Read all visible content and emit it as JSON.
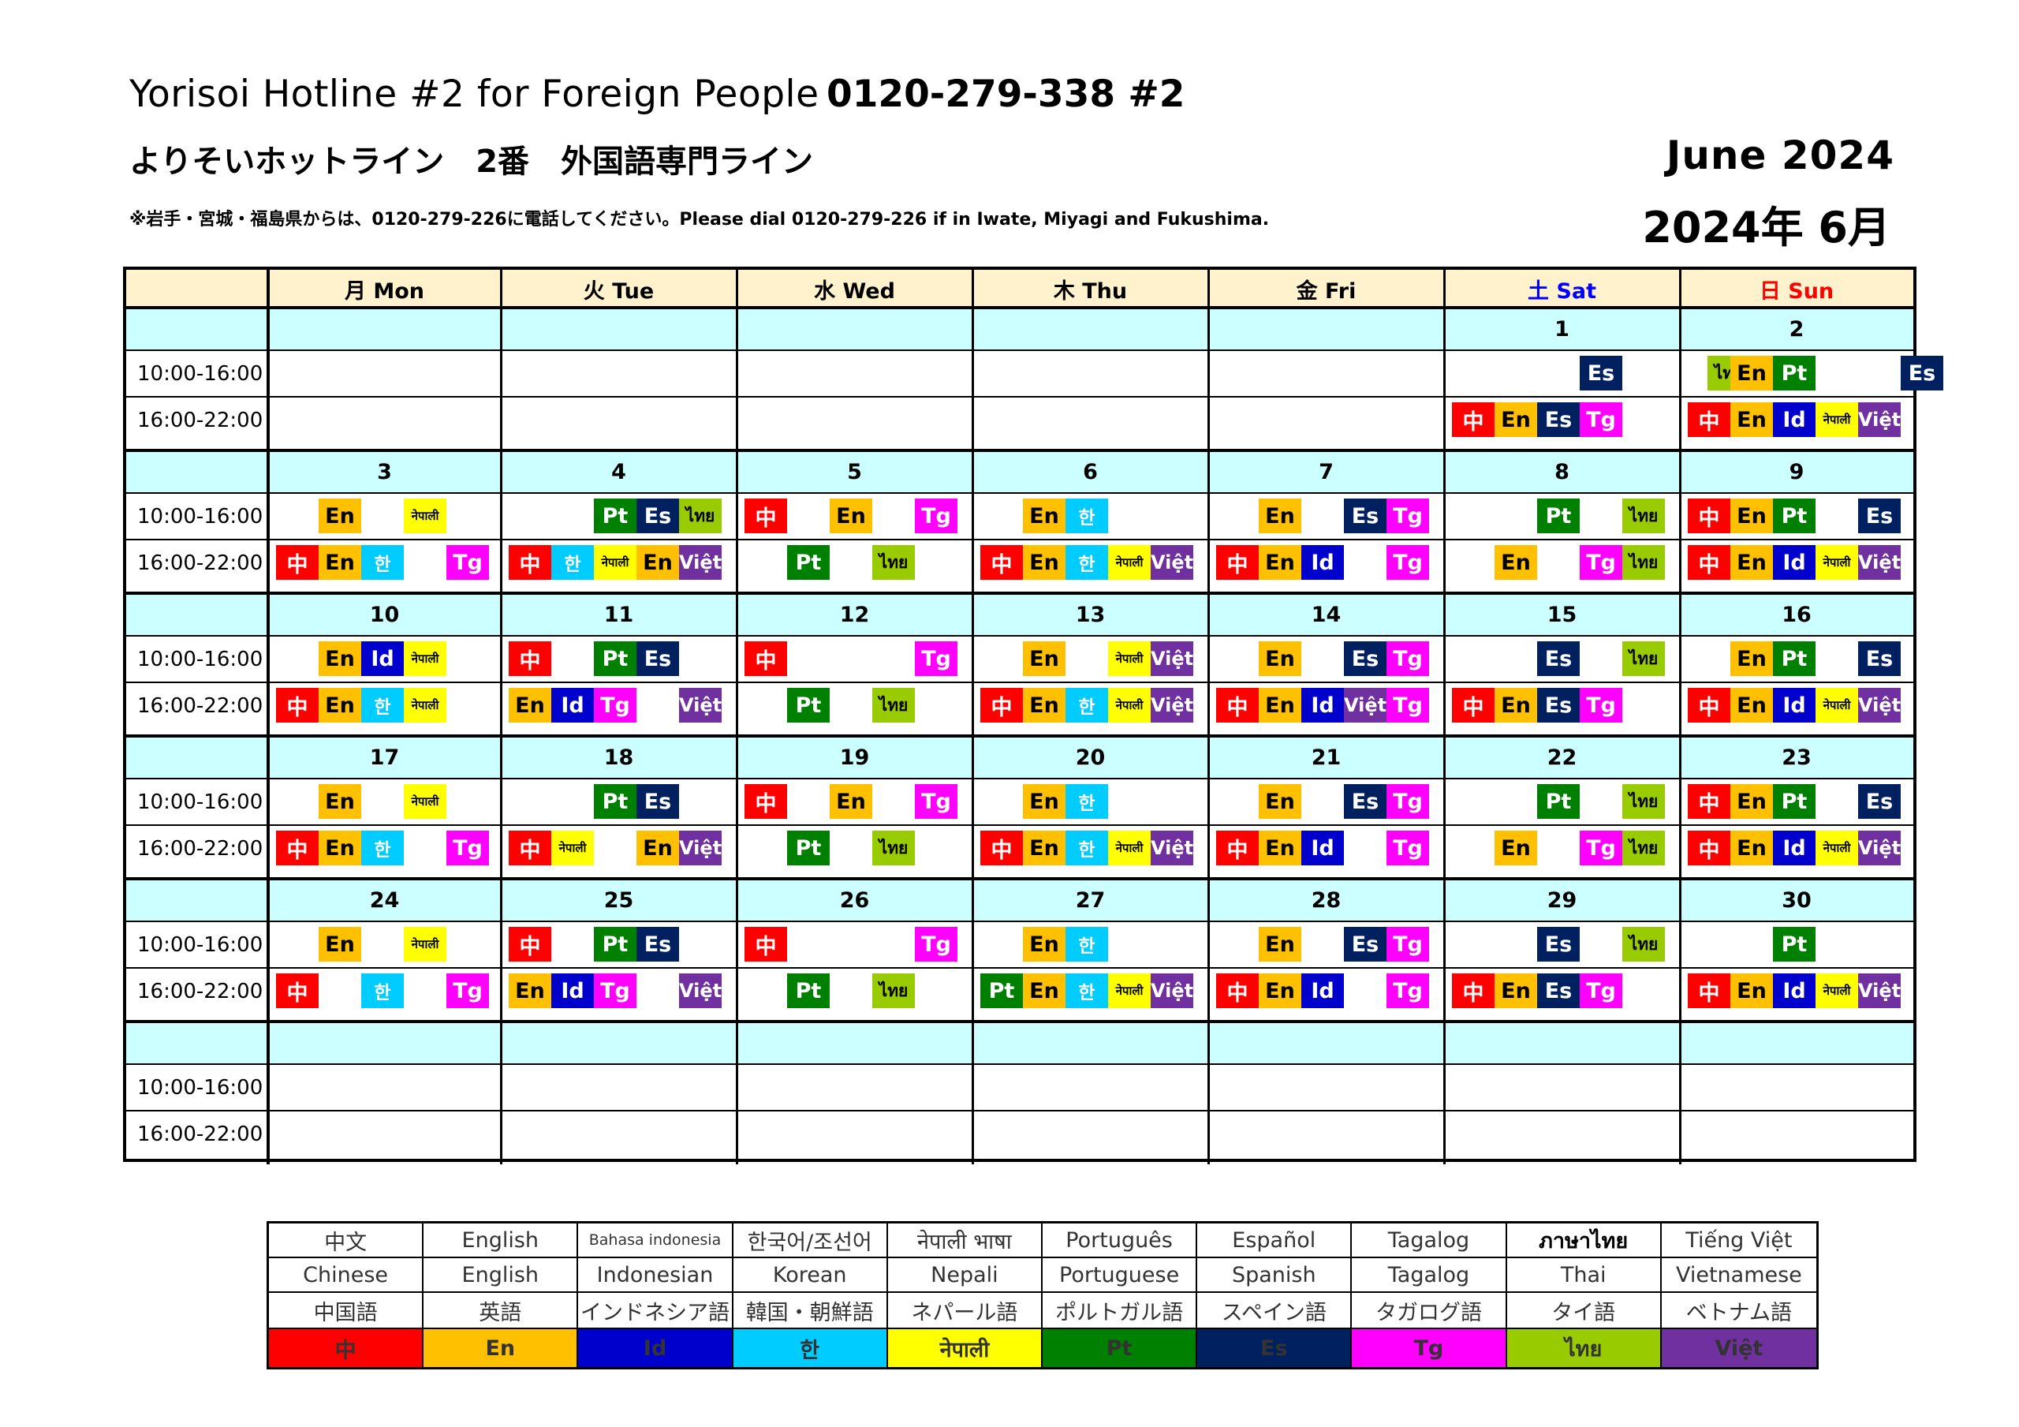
{
  "header": {
    "title_en": "Yorisoi Hotline #2 for Foreign People",
    "phone": "0120-279-338 #2",
    "title_jp": "よりそいホットライン　2番　外国語専門ライン",
    "note": "※岩手・宮城・福島県からは、0120-279-226に電話してください。Please dial 0120-279-226 if in Iwate, Miyagi and Fukushima.",
    "month_en": "June  2024",
    "month_jp": "2024年 6月"
  },
  "days": [
    "月 Mon",
    "火 Tue",
    "水 Wed",
    "木 Thu",
    "金 Fri",
    "土 Sat",
    "日 Sun"
  ],
  "slots": [
    "10:00-16:00",
    "16:00-22:00"
  ],
  "colors": {
    "zh": "#ff0000",
    "en": "#ffc000",
    "id": "#0000cc",
    "ko": "#00ccff",
    "ne": "#ffff00",
    "pt": "#008000",
    "es": "#002060",
    "tg": "#ff00ff",
    "th": "#99cc00",
    "vi": "#7030a0",
    "header_bg": "#fff2cc",
    "date_bg": "#ccffff"
  },
  "codes": {
    "zh": "中",
    "en": "En",
    "id": "Id",
    "ko": "한",
    "ne": "नेपाली",
    "pt": "Pt",
    "es": "Es",
    "tg": "Tg",
    "th": "ไทย",
    "vi": "Việt"
  },
  "weeks": [
    {
      "dates": [
        "",
        "",
        "",
        "",
        "",
        "1",
        "2"
      ],
      "am": [
        [],
        [],
        [],
        [],
        [],
        [
          [
            "es",
            3
          ],
          [
            "th",
            6
          ]
        ],
        [
          [
            "en",
            1
          ],
          [
            "pt",
            2
          ],
          [
            "es",
            5
          ]
        ]
      ],
      "pm": [
        [],
        [],
        [],
        [],
        [],
        [
          [
            "zh",
            0
          ],
          [
            "en",
            1
          ],
          [
            "es",
            2
          ],
          [
            "tg",
            3
          ]
        ],
        [
          [
            "zh",
            0
          ],
          [
            "en",
            1
          ],
          [
            "id",
            2
          ],
          [
            "ne",
            3
          ],
          [
            "vi",
            4
          ]
        ]
      ]
    },
    {
      "dates": [
        "3",
        "4",
        "5",
        "6",
        "7",
        "8",
        "9"
      ],
      "am": [
        [
          [
            "en",
            1
          ],
          [
            "ne",
            3
          ]
        ],
        [
          [
            "pt",
            2
          ],
          [
            "es",
            3
          ],
          [
            "th",
            4
          ]
        ],
        [
          [
            "zh",
            0
          ],
          [
            "en",
            2
          ],
          [
            "tg",
            4
          ]
        ],
        [
          [
            "en",
            1
          ],
          [
            "ko",
            2
          ]
        ],
        [
          [
            "en",
            1
          ],
          [
            "es",
            3
          ],
          [
            "tg",
            4
          ]
        ],
        [
          [
            "pt",
            2
          ],
          [
            "th",
            4
          ]
        ],
        [
          [
            "zh",
            0
          ],
          [
            "en",
            1
          ],
          [
            "pt",
            2
          ],
          [
            "es",
            4
          ]
        ]
      ],
      "pm": [
        [
          [
            "zh",
            0
          ],
          [
            "en",
            1
          ],
          [
            "ko",
            2
          ],
          [
            "tg",
            4
          ]
        ],
        [
          [
            "zh",
            0
          ],
          [
            "ko",
            1
          ],
          [
            "ne",
            2
          ],
          [
            "en",
            3
          ],
          [
            "vi",
            4
          ]
        ],
        [
          [
            "pt",
            1
          ],
          [
            "th",
            3
          ]
        ],
        [
          [
            "zh",
            0
          ],
          [
            "en",
            1
          ],
          [
            "ko",
            2
          ],
          [
            "ne",
            3
          ],
          [
            "vi",
            4
          ]
        ],
        [
          [
            "zh",
            0
          ],
          [
            "en",
            1
          ],
          [
            "id",
            2
          ],
          [
            "tg",
            4
          ]
        ],
        [
          [
            "en",
            1
          ],
          [
            "tg",
            3
          ],
          [
            "th",
            4
          ]
        ],
        [
          [
            "zh",
            0
          ],
          [
            "en",
            1
          ],
          [
            "id",
            2
          ],
          [
            "ne",
            3
          ],
          [
            "vi",
            4
          ]
        ]
      ]
    },
    {
      "dates": [
        "10",
        "11",
        "12",
        "13",
        "14",
        "15",
        "16"
      ],
      "am": [
        [
          [
            "en",
            1
          ],
          [
            "id",
            2
          ],
          [
            "ne",
            3
          ]
        ],
        [
          [
            "zh",
            0
          ],
          [
            "pt",
            2
          ],
          [
            "es",
            3
          ]
        ],
        [
          [
            "zh",
            0
          ],
          [
            "tg",
            4
          ]
        ],
        [
          [
            "en",
            1
          ],
          [
            "ne",
            3
          ],
          [
            "vi",
            4
          ]
        ],
        [
          [
            "en",
            1
          ],
          [
            "es",
            3
          ],
          [
            "tg",
            4
          ]
        ],
        [
          [
            "es",
            2
          ],
          [
            "th",
            4
          ]
        ],
        [
          [
            "en",
            1
          ],
          [
            "pt",
            2
          ],
          [
            "es",
            4
          ]
        ]
      ],
      "pm": [
        [
          [
            "zh",
            0
          ],
          [
            "en",
            1
          ],
          [
            "ko",
            2
          ],
          [
            "ne",
            3
          ]
        ],
        [
          [
            "en",
            0
          ],
          [
            "id",
            1
          ],
          [
            "tg",
            2
          ],
          [
            "vi",
            4
          ]
        ],
        [
          [
            "pt",
            1
          ],
          [
            "th",
            3
          ]
        ],
        [
          [
            "zh",
            0
          ],
          [
            "en",
            1
          ],
          [
            "ko",
            2
          ],
          [
            "ne",
            3
          ],
          [
            "vi",
            4
          ]
        ],
        [
          [
            "zh",
            0
          ],
          [
            "en",
            1
          ],
          [
            "id",
            2
          ],
          [
            "vi",
            3
          ],
          [
            "tg",
            4
          ]
        ],
        [
          [
            "zh",
            0
          ],
          [
            "en",
            1
          ],
          [
            "es",
            2
          ],
          [
            "tg",
            3
          ]
        ],
        [
          [
            "zh",
            0
          ],
          [
            "en",
            1
          ],
          [
            "id",
            2
          ],
          [
            "ne",
            3
          ],
          [
            "vi",
            4
          ]
        ]
      ]
    },
    {
      "dates": [
        "17",
        "18",
        "19",
        "20",
        "21",
        "22",
        "23"
      ],
      "am": [
        [
          [
            "en",
            1
          ],
          [
            "ne",
            3
          ]
        ],
        [
          [
            "pt",
            2
          ],
          [
            "es",
            3
          ]
        ],
        [
          [
            "zh",
            0
          ],
          [
            "en",
            2
          ],
          [
            "tg",
            4
          ]
        ],
        [
          [
            "en",
            1
          ],
          [
            "ko",
            2
          ]
        ],
        [
          [
            "en",
            1
          ],
          [
            "es",
            3
          ],
          [
            "tg",
            4
          ]
        ],
        [
          [
            "pt",
            2
          ],
          [
            "th",
            4
          ]
        ],
        [
          [
            "zh",
            0
          ],
          [
            "en",
            1
          ],
          [
            "pt",
            2
          ],
          [
            "es",
            4
          ]
        ]
      ],
      "pm": [
        [
          [
            "zh",
            0
          ],
          [
            "en",
            1
          ],
          [
            "ko",
            2
          ],
          [
            "tg",
            4
          ]
        ],
        [
          [
            "zh",
            0
          ],
          [
            "ne",
            1
          ],
          [
            "en",
            3
          ],
          [
            "vi",
            4
          ]
        ],
        [
          [
            "pt",
            1
          ],
          [
            "th",
            3
          ]
        ],
        [
          [
            "zh",
            0
          ],
          [
            "en",
            1
          ],
          [
            "ko",
            2
          ],
          [
            "ne",
            3
          ],
          [
            "vi",
            4
          ]
        ],
        [
          [
            "zh",
            0
          ],
          [
            "en",
            1
          ],
          [
            "id",
            2
          ],
          [
            "tg",
            4
          ]
        ],
        [
          [
            "en",
            1
          ],
          [
            "tg",
            3
          ],
          [
            "th",
            4
          ]
        ],
        [
          [
            "zh",
            0
          ],
          [
            "en",
            1
          ],
          [
            "id",
            2
          ],
          [
            "ne",
            3
          ],
          [
            "vi",
            4
          ]
        ]
      ]
    },
    {
      "dates": [
        "24",
        "25",
        "26",
        "27",
        "28",
        "29",
        "30"
      ],
      "am": [
        [
          [
            "en",
            1
          ],
          [
            "ne",
            3
          ]
        ],
        [
          [
            "zh",
            0
          ],
          [
            "pt",
            2
          ],
          [
            "es",
            3
          ]
        ],
        [
          [
            "zh",
            0
          ],
          [
            "tg",
            4
          ]
        ],
        [
          [
            "en",
            1
          ],
          [
            "ko",
            2
          ]
        ],
        [
          [
            "en",
            1
          ],
          [
            "es",
            3
          ],
          [
            "tg",
            4
          ]
        ],
        [
          [
            "es",
            2
          ],
          [
            "th",
            4
          ]
        ],
        [
          [
            "pt",
            2
          ]
        ]
      ],
      "pm": [
        [
          [
            "zh",
            0
          ],
          [
            "ko",
            2
          ],
          [
            "tg",
            4
          ]
        ],
        [
          [
            "en",
            0
          ],
          [
            "id",
            1
          ],
          [
            "tg",
            2
          ],
          [
            "vi",
            4
          ]
        ],
        [
          [
            "pt",
            1
          ],
          [
            "th",
            3
          ]
        ],
        [
          [
            "pt",
            0
          ],
          [
            "en",
            1
          ],
          [
            "ko",
            2
          ],
          [
            "ne",
            3
          ],
          [
            "vi",
            4
          ]
        ],
        [
          [
            "zh",
            0
          ],
          [
            "en",
            1
          ],
          [
            "id",
            2
          ],
          [
            "tg",
            4
          ]
        ],
        [
          [
            "zh",
            0
          ],
          [
            "en",
            1
          ],
          [
            "es",
            2
          ],
          [
            "tg",
            3
          ]
        ],
        [
          [
            "zh",
            0
          ],
          [
            "en",
            1
          ],
          [
            "id",
            2
          ],
          [
            "ne",
            3
          ],
          [
            "vi",
            4
          ]
        ]
      ]
    },
    {
      "dates": [
        "",
        "",
        "",
        "",
        "",
        "",
        ""
      ],
      "am": [
        [],
        [],
        [],
        [],
        [],
        [],
        []
      ],
      "pm": [
        [],
        [],
        [],
        [],
        [],
        [],
        []
      ]
    }
  ],
  "legend": {
    "native": [
      "中文",
      "English",
      "Bahasa indonesia",
      "한국어/조선어",
      "नेपाली भाषा",
      "Português",
      "Español",
      "Tagalog",
      "ภาษาไทย",
      "Tiếng Việt"
    ],
    "english": [
      "Chinese",
      "English",
      "Indonesian",
      "Korean",
      "Nepali",
      "Portuguese",
      "Spanish",
      "Tagalog",
      "Thai",
      "Vietnamese"
    ],
    "japanese": [
      "中国語",
      "英語",
      "インドネシア語",
      "韓国・朝鮮語",
      "ネパール語",
      "ポルトガル語",
      "スペイン語",
      "タガログ語",
      "タイ語",
      "ベトナム語"
    ],
    "codes": [
      "zh",
      "en",
      "id",
      "ko",
      "ne",
      "pt",
      "es",
      "tg",
      "th",
      "vi"
    ]
  }
}
